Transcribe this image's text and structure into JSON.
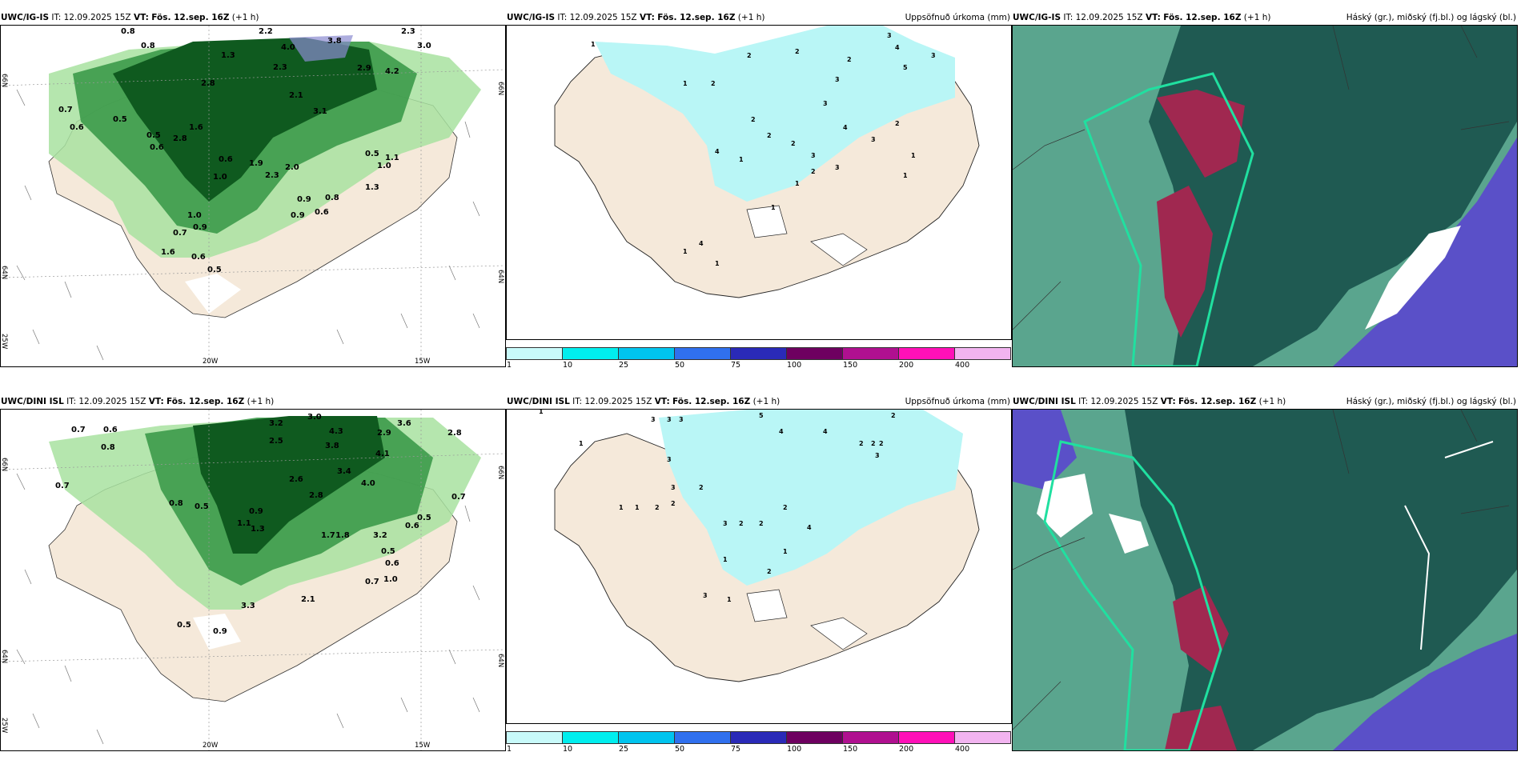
{
  "rows": [
    {
      "model": "UWC/IG-IS",
      "it_label": "IT:",
      "it_value": "12.09.2025 15Z",
      "vt_label": "VT:",
      "vt_value": "Fös. 12.sep. 16Z",
      "offset": "(+1 h)",
      "wind_values": [
        "0.8",
        "0.8",
        "0.7",
        "0.6",
        "0.5",
        "0.5",
        "0.6",
        "2.2",
        "2.3",
        "3.0",
        "1.3",
        "2.8",
        "2.3",
        "2.1",
        "3.1",
        "1.6",
        "0.6",
        "1.0",
        "1.9",
        "2.3",
        "2.0",
        "0.9",
        "0.8",
        "0.6",
        "1.0",
        "0.9",
        "0.7",
        "0.6",
        "0.5",
        "0.9",
        "1.6",
        "2.8",
        "0.5",
        "1.1",
        "1.0",
        "1.3",
        "4.0",
        "3.8",
        "4.2",
        "2.9"
      ],
      "precip_values": [
        "1",
        "1",
        "2",
        "2",
        "3",
        "4",
        "5",
        "2",
        "3",
        "2",
        "3",
        "2",
        "4",
        "3",
        "1",
        "2",
        "4",
        "3",
        "1",
        "1",
        "2",
        "2",
        "3",
        "1",
        "4",
        "1",
        "1",
        "1",
        "2",
        "3"
      ]
    },
    {
      "model": "UWC/DINI ISL",
      "it_label": "IT:",
      "it_value": "12.09.2025 15Z",
      "vt_label": "VT:",
      "vt_value": "Fös. 12.sep. 16Z",
      "offset": "(+1 h)",
      "wind_values": [
        "0.7",
        "0.6",
        "0.8",
        "0.7",
        "0.8",
        "0.5",
        "3.2",
        "3.0",
        "2.5",
        "3.8",
        "4.3",
        "2.9",
        "1.1",
        "0.9",
        "1.3",
        "2.6",
        "3.4",
        "4.0",
        "2.8",
        "1.7",
        "1.8",
        "3.2",
        "0.5",
        "0.6",
        "0.7",
        "1.0",
        "0.5",
        "0.9",
        "3.3",
        "2.1",
        "0.7",
        "2.8",
        "3.6",
        "4.1",
        "0.5",
        "0.6"
      ],
      "precip_values": [
        "1",
        "1",
        "3",
        "3",
        "3",
        "5",
        "4",
        "4",
        "2",
        "2",
        "2",
        "3",
        "3",
        "2",
        "1",
        "1",
        "2",
        "2",
        "3",
        "3",
        "2",
        "2",
        "2",
        "1",
        "1",
        "3",
        "1",
        "2",
        "4",
        "2"
      ]
    }
  ],
  "precip_title": "Uppsöfnuð úrkoma (mm)",
  "cloud_title": "Háský (gr.), miðský (fj.bl.) og lágský (bl.)",
  "colorbar": {
    "ticks": [
      "1",
      "10",
      "25",
      "50",
      "75",
      "100",
      "150",
      "200",
      "400"
    ],
    "colors": [
      "#c8fafa",
      "#00eeee",
      "#00c4ee",
      "#3070ee",
      "#2a2ab8",
      "#6e0060",
      "#b01090",
      "#ff10b8",
      "#f2b4f0"
    ]
  },
  "axis_labels": {
    "lon_20w": "20W",
    "lon_15w": "15W",
    "lat_66n": "66N",
    "lat_64n": "64N",
    "lon_25w": "25W"
  },
  "colors": {
    "land": "#f5e9da",
    "dark_green": "#0f5a1f",
    "mid_green": "#3c9a4a",
    "light_green": "#a8e2a0",
    "cyan_precip": "#b9f6f6",
    "cloud_teal": "#5aa58e",
    "cloud_dark": "#1f5a52",
    "cloud_blue": "#5a50c8",
    "cloud_red": "#a02850"
  }
}
